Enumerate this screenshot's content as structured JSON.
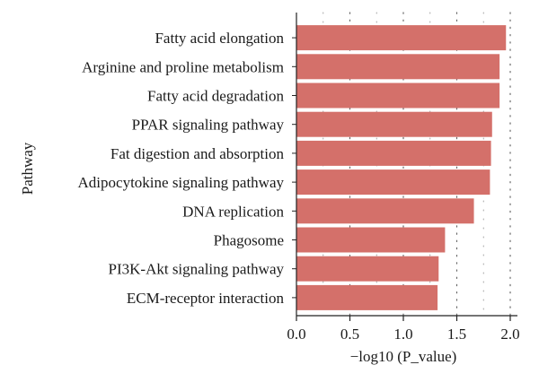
{
  "chart_data": {
    "type": "bar",
    "orientation": "horizontal",
    "categories": [
      "Fatty acid elongation",
      "Arginine and proline metabolism",
      "Fatty acid degradation",
      "PPAR signaling pathway",
      "Fat digestion and absorption",
      "Adipocytokine signaling pathway",
      "DNA replication",
      "Phagosome",
      "PI3K-Akt signaling pathway",
      "ECM-receptor interaction"
    ],
    "series": [
      {
        "values": [
          1.96,
          1.9,
          1.9,
          1.83,
          1.82,
          1.81,
          1.66,
          1.39,
          1.33,
          1.32
        ]
      }
    ],
    "xlabel": "−log10 (P_value)",
    "ylabel": "Pathway",
    "xlim": [
      0,
      2.0
    ],
    "xticks": [
      "0.0",
      "0.5",
      "1.0",
      "1.5",
      "2.0"
    ],
    "grid": "dotted vertical",
    "legend": "none",
    "colors": {
      "bar": "#d4706a",
      "axis": "#222222",
      "grid": "#666666"
    }
  }
}
